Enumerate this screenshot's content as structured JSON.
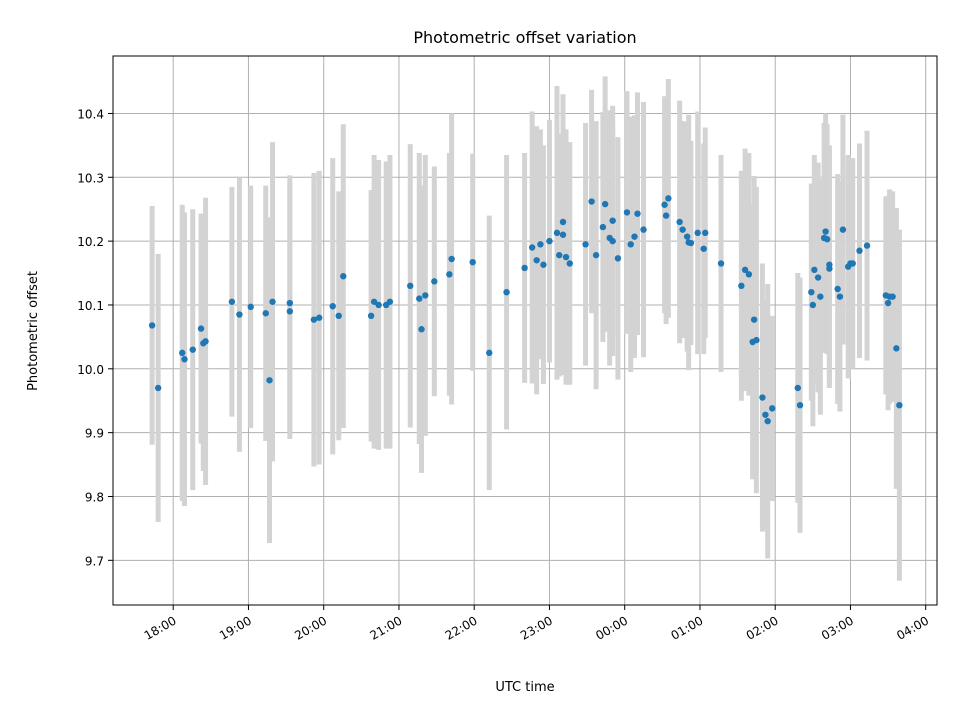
{
  "chart_data": {
    "type": "scatter",
    "title": "Photometric offset variation",
    "xlabel": "UTC time",
    "ylabel": "Photometric offset",
    "x_unit": "hours (0 = 00:00 UTC; negative values are the preceding evening)",
    "xlim": [
      -6.8,
      4.15
    ],
    "ylim": [
      9.63,
      10.49
    ],
    "x_ticks": [
      -6,
      -5,
      -4,
      -3,
      -2,
      -1,
      0,
      1,
      2,
      3,
      4
    ],
    "x_tick_labels": [
      "18:00",
      "19:00",
      "20:00",
      "21:00",
      "22:00",
      "23:00",
      "00:00",
      "01:00",
      "02:00",
      "03:00",
      "04:00"
    ],
    "y_ticks": [
      9.7,
      9.8,
      9.9,
      10.0,
      10.1,
      10.2,
      10.3,
      10.4
    ],
    "y_tick_labels": [
      "9.7",
      "9.8",
      "9.9",
      "10.0",
      "10.1",
      "10.2",
      "10.3",
      "10.4"
    ],
    "grid": true,
    "colors": {
      "points": "#1f77b4",
      "errorbars": "#d3d3d3",
      "grid": "#b0b0b0"
    },
    "points": [
      {
        "x": -6.28,
        "y": 10.068,
        "err": 0.187
      },
      {
        "x": -6.2,
        "y": 9.97,
        "err": 0.21
      },
      {
        "x": -5.88,
        "y": 10.025,
        "err": 0.232
      },
      {
        "x": -5.85,
        "y": 10.015,
        "err": 0.23
      },
      {
        "x": -5.74,
        "y": 10.03,
        "err": 0.22
      },
      {
        "x": -5.63,
        "y": 10.063,
        "err": 0.18
      },
      {
        "x": -5.6,
        "y": 10.04,
        "err": 0.2
      },
      {
        "x": -5.57,
        "y": 10.043,
        "err": 0.225
      },
      {
        "x": -5.22,
        "y": 10.105,
        "err": 0.18
      },
      {
        "x": -5.12,
        "y": 10.085,
        "err": 0.215
      },
      {
        "x": -4.97,
        "y": 10.097,
        "err": 0.19
      },
      {
        "x": -4.77,
        "y": 10.087,
        "err": 0.2
      },
      {
        "x": -4.72,
        "y": 9.982,
        "err": 0.255
      },
      {
        "x": -4.68,
        "y": 10.105,
        "err": 0.25
      },
      {
        "x": -4.45,
        "y": 10.103,
        "err": 0.2
      },
      {
        "x": -4.45,
        "y": 10.09,
        "err": 0.2
      },
      {
        "x": -4.13,
        "y": 10.077,
        "err": 0.23
      },
      {
        "x": -4.06,
        "y": 10.08,
        "err": 0.23
      },
      {
        "x": -3.88,
        "y": 10.098,
        "err": 0.232
      },
      {
        "x": -3.8,
        "y": 10.083,
        "err": 0.195
      },
      {
        "x": -3.74,
        "y": 10.145,
        "err": 0.238
      },
      {
        "x": -3.37,
        "y": 10.083,
        "err": 0.197
      },
      {
        "x": -3.33,
        "y": 10.105,
        "err": 0.23
      },
      {
        "x": -3.27,
        "y": 10.1,
        "err": 0.227
      },
      {
        "x": -3.17,
        "y": 10.1,
        "err": 0.225
      },
      {
        "x": -3.12,
        "y": 10.105,
        "err": 0.23
      },
      {
        "x": -2.85,
        "y": 10.13,
        "err": 0.222
      },
      {
        "x": -2.73,
        "y": 10.11,
        "err": 0.228
      },
      {
        "x": -2.7,
        "y": 10.062,
        "err": 0.225
      },
      {
        "x": -2.65,
        "y": 10.115,
        "err": 0.22
      },
      {
        "x": -2.53,
        "y": 10.137,
        "err": 0.18
      },
      {
        "x": -2.33,
        "y": 10.148,
        "err": 0.19
      },
      {
        "x": -2.3,
        "y": 10.172,
        "err": 0.228
      },
      {
        "x": -2.02,
        "y": 10.167,
        "err": 0.17
      },
      {
        "x": -1.8,
        "y": 10.025,
        "err": 0.215
      },
      {
        "x": -1.57,
        "y": 10.12,
        "err": 0.215
      },
      {
        "x": -1.33,
        "y": 10.158,
        "err": 0.18
      },
      {
        "x": -1.23,
        "y": 10.19,
        "err": 0.213
      },
      {
        "x": -1.17,
        "y": 10.17,
        "err": 0.21
      },
      {
        "x": -1.12,
        "y": 10.195,
        "err": 0.18
      },
      {
        "x": -1.08,
        "y": 10.163,
        "err": 0.187
      },
      {
        "x": -1.0,
        "y": 10.2,
        "err": 0.19
      },
      {
        "x": -0.9,
        "y": 10.213,
        "err": 0.23
      },
      {
        "x": -0.87,
        "y": 10.178,
        "err": 0.19
      },
      {
        "x": -0.82,
        "y": 10.21,
        "err": 0.22
      },
      {
        "x": -0.82,
        "y": 10.23,
        "err": 0.19
      },
      {
        "x": -0.78,
        "y": 10.175,
        "err": 0.2
      },
      {
        "x": -0.73,
        "y": 10.165,
        "err": 0.19
      },
      {
        "x": -0.52,
        "y": 10.195,
        "err": 0.19
      },
      {
        "x": -0.44,
        "y": 10.262,
        "err": 0.175
      },
      {
        "x": -0.38,
        "y": 10.178,
        "err": 0.21
      },
      {
        "x": -0.29,
        "y": 10.222,
        "err": 0.18
      },
      {
        "x": -0.26,
        "y": 10.258,
        "err": 0.2
      },
      {
        "x": -0.2,
        "y": 10.205,
        "err": 0.2
      },
      {
        "x": -0.16,
        "y": 10.232,
        "err": 0.18
      },
      {
        "x": -0.16,
        "y": 10.2,
        "err": 0.18
      },
      {
        "x": -0.09,
        "y": 10.173,
        "err": 0.19
      },
      {
        "x": 0.03,
        "y": 10.245,
        "err": 0.19
      },
      {
        "x": 0.08,
        "y": 10.195,
        "err": 0.2
      },
      {
        "x": 0.13,
        "y": 10.207,
        "err": 0.19
      },
      {
        "x": 0.17,
        "y": 10.243,
        "err": 0.19
      },
      {
        "x": 0.25,
        "y": 10.218,
        "err": 0.2
      },
      {
        "x": 0.53,
        "y": 10.257,
        "err": 0.17
      },
      {
        "x": 0.55,
        "y": 10.24,
        "err": 0.17
      },
      {
        "x": 0.58,
        "y": 10.267,
        "err": 0.187
      },
      {
        "x": 0.73,
        "y": 10.23,
        "err": 0.19
      },
      {
        "x": 0.77,
        "y": 10.218,
        "err": 0.17
      },
      {
        "x": 0.83,
        "y": 10.207,
        "err": 0.18
      },
      {
        "x": 0.85,
        "y": 10.198,
        "err": 0.2
      },
      {
        "x": 0.88,
        "y": 10.197,
        "err": 0.16
      },
      {
        "x": 0.97,
        "y": 10.213,
        "err": 0.19
      },
      {
        "x": 1.07,
        "y": 10.213,
        "err": 0.165
      },
      {
        "x": 1.05,
        "y": 10.188,
        "err": 0.165
      },
      {
        "x": 1.28,
        "y": 10.165,
        "err": 0.17
      },
      {
        "x": 1.55,
        "y": 10.13,
        "err": 0.18
      },
      {
        "x": 1.6,
        "y": 10.155,
        "err": 0.19
      },
      {
        "x": 1.65,
        "y": 10.148,
        "err": 0.19
      },
      {
        "x": 1.7,
        "y": 10.042,
        "err": 0.215
      },
      {
        "x": 1.72,
        "y": 10.077,
        "err": 0.225
      },
      {
        "x": 1.75,
        "y": 10.045,
        "err": 0.24
      },
      {
        "x": 1.83,
        "y": 9.955,
        "err": 0.21
      },
      {
        "x": 1.87,
        "y": 9.928,
        "err": 0.18
      },
      {
        "x": 1.9,
        "y": 9.918,
        "err": 0.215
      },
      {
        "x": 1.96,
        "y": 9.938,
        "err": 0.145
      },
      {
        "x": 2.3,
        "y": 9.97,
        "err": 0.18
      },
      {
        "x": 2.33,
        "y": 9.943,
        "err": 0.2
      },
      {
        "x": 2.48,
        "y": 10.12,
        "err": 0.17
      },
      {
        "x": 2.5,
        "y": 10.1,
        "err": 0.19
      },
      {
        "x": 2.52,
        "y": 10.155,
        "err": 0.18
      },
      {
        "x": 2.57,
        "y": 10.143,
        "err": 0.18
      },
      {
        "x": 2.6,
        "y": 10.113,
        "err": 0.185
      },
      {
        "x": 2.65,
        "y": 10.205,
        "err": 0.18
      },
      {
        "x": 2.67,
        "y": 10.215,
        "err": 0.185
      },
      {
        "x": 2.69,
        "y": 10.203,
        "err": 0.18
      },
      {
        "x": 2.72,
        "y": 10.163,
        "err": 0.187
      },
      {
        "x": 2.72,
        "y": 10.157,
        "err": 0.187
      },
      {
        "x": 2.83,
        "y": 10.125,
        "err": 0.18
      },
      {
        "x": 2.86,
        "y": 10.113,
        "err": 0.18
      },
      {
        "x": 2.9,
        "y": 10.218,
        "err": 0.18
      },
      {
        "x": 2.97,
        "y": 10.16,
        "err": 0.175
      },
      {
        "x": 3.0,
        "y": 10.165,
        "err": 0.165
      },
      {
        "x": 3.03,
        "y": 10.165,
        "err": 0.165
      },
      {
        "x": 3.12,
        "y": 10.185,
        "err": 0.168
      },
      {
        "x": 3.22,
        "y": 10.193,
        "err": 0.18
      },
      {
        "x": 3.47,
        "y": 10.115,
        "err": 0.155
      },
      {
        "x": 3.5,
        "y": 10.103,
        "err": 0.168
      },
      {
        "x": 3.52,
        "y": 10.113,
        "err": 0.168
      },
      {
        "x": 3.56,
        "y": 10.113,
        "err": 0.165
      },
      {
        "x": 3.61,
        "y": 10.032,
        "err": 0.22
      },
      {
        "x": 3.65,
        "y": 9.943,
        "err": 0.275
      }
    ]
  }
}
